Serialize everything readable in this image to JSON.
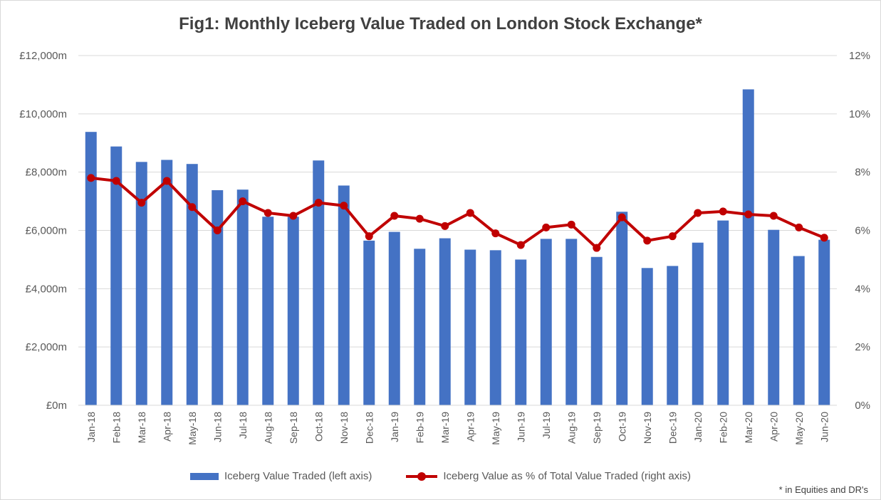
{
  "chart_data": {
    "type": "bar+line",
    "title": "Fig1: Monthly Iceberg Value Traded on London Stock Exchange*",
    "categories": [
      "Jan-18",
      "Feb-18",
      "Mar-18",
      "Apr-18",
      "May-18",
      "Jun-18",
      "Jul-18",
      "Aug-18",
      "Sep-18",
      "Oct-18",
      "Nov-18",
      "Dec-18",
      "Jan-19",
      "Feb-19",
      "Mar-19",
      "Apr-19",
      "May-19",
      "Jun-19",
      "Jul-19",
      "Aug-19",
      "Sep-19",
      "Oct-19",
      "Nov-19",
      "Dec-19",
      "Jan-20",
      "Feb-20",
      "Mar-20",
      "Apr-20",
      "May-20",
      "Jun-20"
    ],
    "series": [
      {
        "name": "Iceberg Value Traded (left axis)",
        "type": "bar",
        "axis": "left",
        "color": "#4472c4",
        "values": [
          9380,
          8880,
          8350,
          8420,
          8280,
          7380,
          7400,
          6470,
          6470,
          8400,
          7540,
          5650,
          5950,
          5370,
          5730,
          5340,
          5320,
          5000,
          5710,
          5710,
          5090,
          6640,
          4710,
          4780,
          5580,
          6340,
          10840,
          6020,
          5120,
          5680
        ]
      },
      {
        "name": "Iceberg Value as % of Total Value Traded (right axis)",
        "type": "line",
        "axis": "right",
        "color": "#c00000",
        "values": [
          7.8,
          7.7,
          6.95,
          7.7,
          6.8,
          6.0,
          7.0,
          6.6,
          6.5,
          6.95,
          6.85,
          5.8,
          6.5,
          6.4,
          6.15,
          6.6,
          5.9,
          5.5,
          6.1,
          6.2,
          5.4,
          6.45,
          5.65,
          5.8,
          6.6,
          6.65,
          6.55,
          6.5,
          6.1,
          5.75
        ]
      }
    ],
    "y_left": {
      "ylim": [
        0,
        12000
      ],
      "ticks": [
        0,
        2000,
        4000,
        6000,
        8000,
        10000,
        12000
      ],
      "tick_labels": [
        "£0m",
        "£2,000m",
        "£4,000m",
        "£6,000m",
        "£8,000m",
        "£10,000m",
        "£12,000m"
      ]
    },
    "y_right": {
      "ylim": [
        0,
        12
      ],
      "ticks": [
        0,
        2,
        4,
        6,
        8,
        10,
        12
      ],
      "tick_labels": [
        "0%",
        "2%",
        "4%",
        "6%",
        "8%",
        "10%",
        "12%"
      ]
    },
    "grid": true,
    "legend_position": "bottom"
  },
  "footnote": "* in Equities and DR's",
  "colors": {
    "gridline": "#d9d9d9",
    "axis_text": "#595959"
  }
}
